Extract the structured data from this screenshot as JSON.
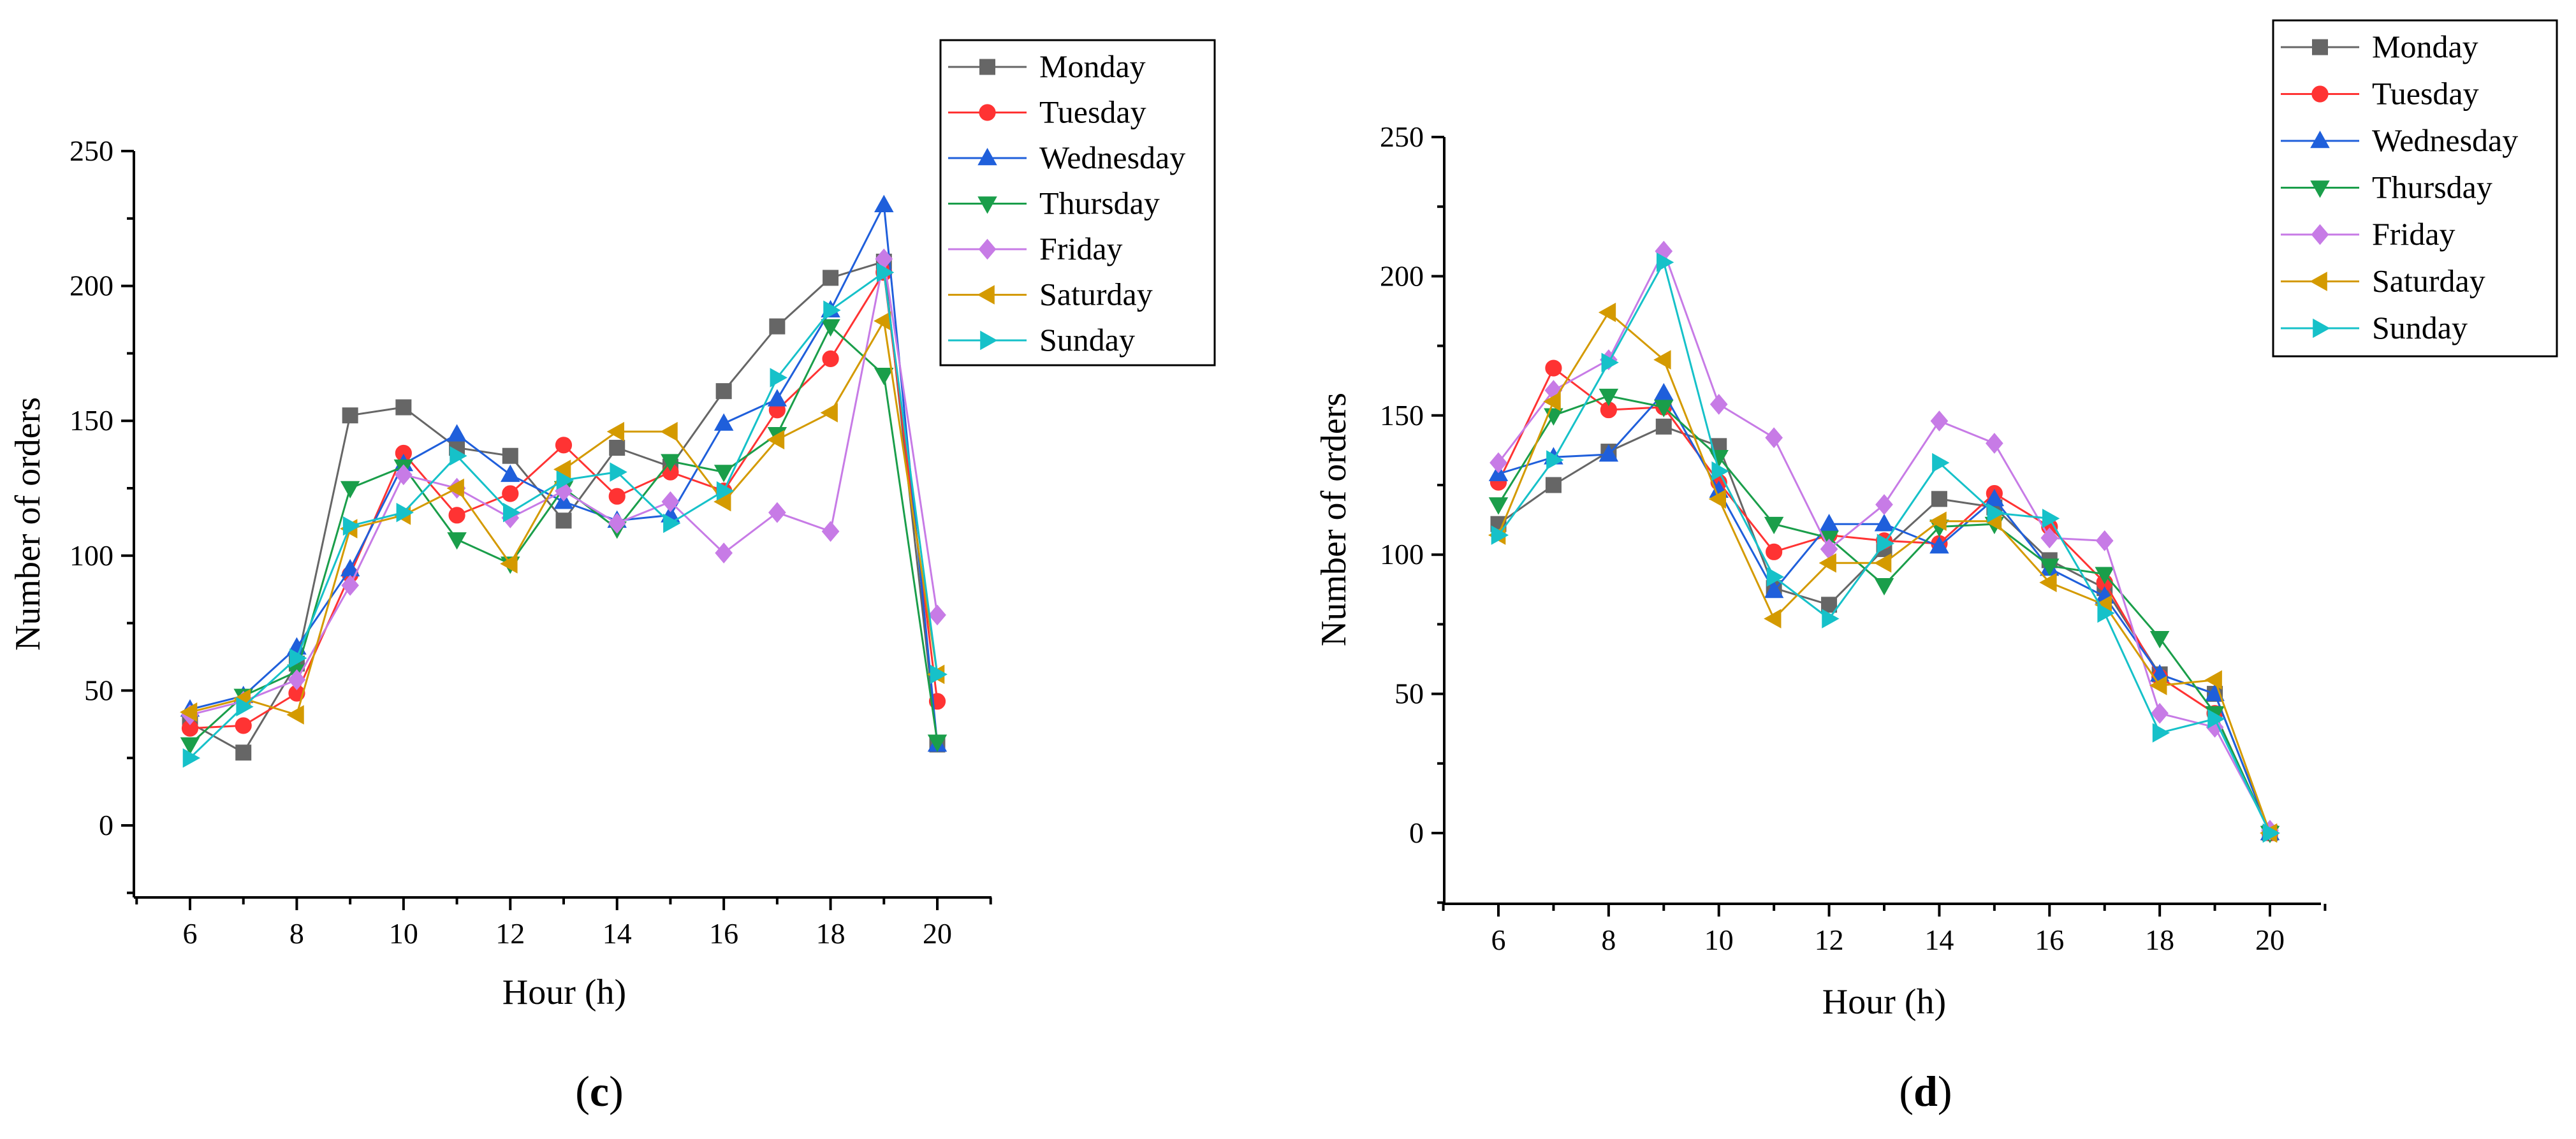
{
  "chart_data": [
    {
      "type": "line",
      "panel_label": "(c)",
      "xlabel": "Hour (h)",
      "ylabel": "Number of orders",
      "xlim": [
        5,
        21
      ],
      "ylim": [
        -25,
        250
      ],
      "xticks": [
        "6",
        "8",
        "10",
        "12",
        "14",
        "16",
        "18",
        "20"
      ],
      "yticks": [
        "0",
        "50",
        "100",
        "150",
        "200",
        "250"
      ],
      "x": [
        6,
        7,
        8,
        9,
        10,
        11,
        12,
        13,
        14,
        15,
        16,
        17,
        18,
        19,
        20
      ],
      "legend_position": "top-right",
      "series": [
        {
          "name": "Monday",
          "color": "#666666",
          "marker": "square",
          "values": [
            38,
            27,
            60,
            152,
            155,
            140,
            137,
            113,
            140,
            133,
            161,
            185,
            203,
            209,
            30
          ]
        },
        {
          "name": "Tuesday",
          "color": "#ff3333",
          "marker": "circle",
          "values": [
            36,
            37,
            49,
            93,
            138,
            115,
            123,
            141,
            122,
            131,
            124,
            154,
            173,
            205,
            46
          ]
        },
        {
          "name": "Wednesday",
          "color": "#1f5fdb",
          "marker": "triangle-up",
          "values": [
            43,
            48,
            66,
            95,
            134,
            145,
            130,
            120,
            113,
            115,
            149,
            158,
            191,
            230,
            30
          ]
        },
        {
          "name": "Thursday",
          "color": "#1a9e4a",
          "marker": "triangle-down",
          "values": [
            30,
            48,
            57,
            125,
            133,
            106,
            97,
            125,
            110,
            135,
            131,
            145,
            185,
            167,
            31
          ]
        },
        {
          "name": "Friday",
          "color": "#c77be6",
          "marker": "diamond",
          "values": [
            41,
            46,
            54,
            89,
            130,
            125,
            114,
            124,
            112,
            120,
            101,
            116,
            109,
            210,
            78
          ]
        },
        {
          "name": "Saturday",
          "color": "#d49a00",
          "marker": "triangle-left",
          "values": [
            42,
            47,
            41,
            110,
            115,
            125,
            97,
            132,
            146,
            146,
            120,
            143,
            153,
            187,
            56
          ]
        },
        {
          "name": "Sunday",
          "color": "#16c1c9",
          "marker": "triangle-right",
          "values": [
            25,
            44,
            62,
            111,
            116,
            137,
            116,
            128,
            131,
            112,
            124,
            166,
            191,
            205,
            56
          ]
        }
      ]
    },
    {
      "type": "line",
      "panel_label": "(d)",
      "xlabel": "Hour (h)",
      "ylabel": "Number of orders",
      "xlim": [
        5,
        21
      ],
      "ylim": [
        -25,
        250
      ],
      "xticks": [
        "6",
        "8",
        "10",
        "12",
        "14",
        "16",
        "18",
        "20"
      ],
      "yticks": [
        "0",
        "50",
        "100",
        "150",
        "200",
        "250"
      ],
      "x": [
        6,
        7,
        8,
        9,
        10,
        11,
        12,
        13,
        14,
        15,
        16,
        17,
        18,
        19,
        20
      ],
      "legend_position": "top-right",
      "series": [
        {
          "name": "Monday",
          "color": "#666666",
          "marker": "square",
          "values": [
            111,
            125,
            137,
            146,
            139,
            88,
            82,
            102,
            120,
            117,
            98,
            88,
            57,
            50,
            0
          ]
        },
        {
          "name": "Tuesday",
          "color": "#ff3333",
          "marker": "circle",
          "values": [
            126,
            167,
            152,
            153,
            126,
            101,
            107,
            105,
            104,
            122,
            110,
            90,
            56,
            43,
            0
          ]
        },
        {
          "name": "Wednesday",
          "color": "#1f5fdb",
          "marker": "triangle-up",
          "values": [
            129,
            135,
            136,
            158,
            123,
            87,
            111,
            111,
            103,
            120,
            95,
            85,
            57,
            50,
            0
          ]
        },
        {
          "name": "Thursday",
          "color": "#1a9e4a",
          "marker": "triangle-down",
          "values": [
            118,
            150,
            157,
            153,
            135,
            111,
            106,
            89,
            110,
            111,
            96,
            93,
            70,
            43,
            0
          ]
        },
        {
          "name": "Friday",
          "color": "#c77be6",
          "marker": "diamond",
          "values": [
            133,
            159,
            170,
            209,
            154,
            142,
            102,
            118,
            148,
            140,
            106,
            105,
            43,
            38,
            1
          ]
        },
        {
          "name": "Saturday",
          "color": "#d49a00",
          "marker": "triangle-left",
          "values": [
            107,
            155,
            187,
            170,
            120,
            77,
            97,
            97,
            112,
            112,
            90,
            82,
            53,
            55,
            0
          ]
        },
        {
          "name": "Sunday",
          "color": "#16c1c9",
          "marker": "triangle-right",
          "values": [
            107,
            134,
            169,
            205,
            130,
            92,
            77,
            104,
            133,
            115,
            113,
            79,
            36,
            41,
            0
          ]
        }
      ]
    }
  ]
}
